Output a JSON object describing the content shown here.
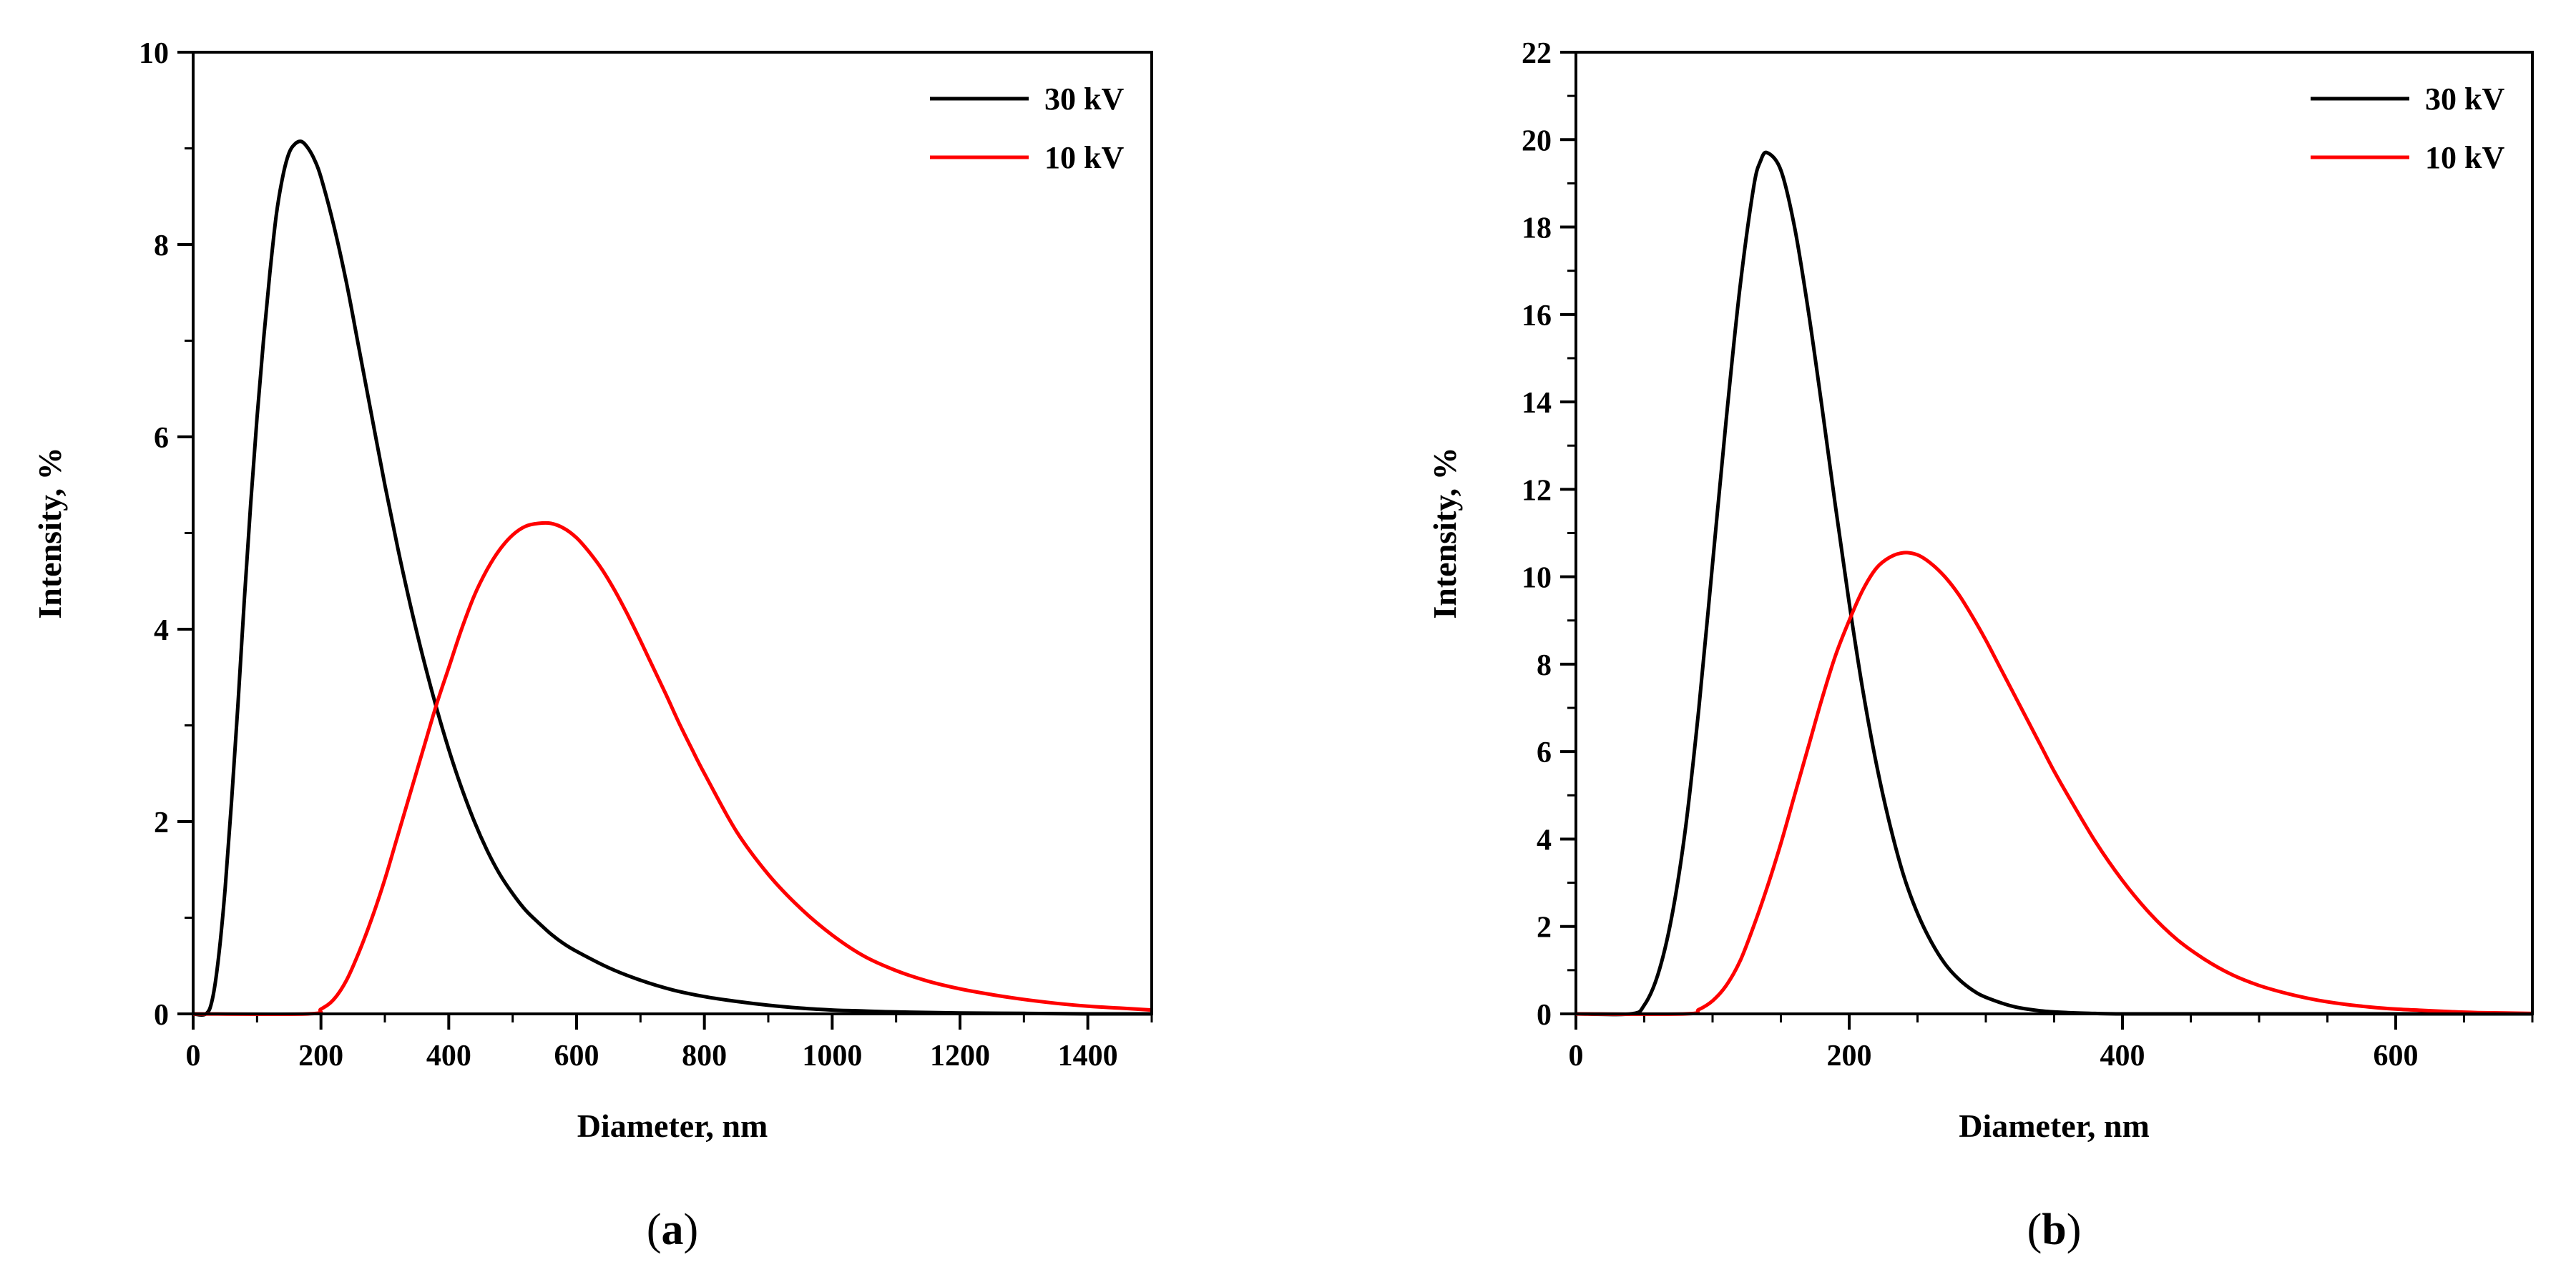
{
  "chart_data": [
    {
      "type": "line",
      "panel": "a",
      "caption_open": "(",
      "caption_letter": "a",
      "caption_close": ")",
      "title": "",
      "xlabel": "Diameter, nm",
      "ylabel": "Intensity, %",
      "xlim": [
        0,
        1500
      ],
      "ylim": [
        0,
        10
      ],
      "xticks": [
        0,
        200,
        400,
        600,
        800,
        1000,
        1200,
        1400
      ],
      "yticks": [
        0,
        2,
        4,
        6,
        8,
        10
      ],
      "x_minor_step": 100,
      "y_minor_step": 1,
      "legend_position": "top-right",
      "series": [
        {
          "name": "30 kV",
          "color": "#000000",
          "x": [
            0,
            20,
            30,
            40,
            50,
            60,
            70,
            80,
            90,
            100,
            110,
            120,
            130,
            140,
            150,
            160,
            170,
            180,
            190,
            200,
            220,
            240,
            260,
            280,
            300,
            320,
            340,
            360,
            380,
            400,
            420,
            440,
            460,
            480,
            500,
            520,
            540,
            560,
            580,
            600,
            650,
            700,
            750,
            800,
            850,
            900,
            950,
            1000,
            1050,
            1100,
            1200,
            1300,
            1400,
            1500
          ],
          "y": [
            0,
            0,
            0.15,
            0.6,
            1.3,
            2.2,
            3.2,
            4.3,
            5.3,
            6.2,
            7.0,
            7.7,
            8.3,
            8.7,
            8.95,
            9.05,
            9.07,
            9.0,
            8.88,
            8.7,
            8.2,
            7.6,
            6.9,
            6.2,
            5.5,
            4.85,
            4.25,
            3.7,
            3.2,
            2.75,
            2.35,
            2.0,
            1.7,
            1.45,
            1.25,
            1.08,
            0.95,
            0.83,
            0.73,
            0.65,
            0.48,
            0.35,
            0.25,
            0.18,
            0.13,
            0.09,
            0.06,
            0.04,
            0.03,
            0.02,
            0.01,
            0.005,
            0.0,
            0.0
          ]
        },
        {
          "name": "10 kV",
          "color": "#ff0000",
          "x": [
            0,
            180,
            200,
            220,
            240,
            260,
            280,
            300,
            320,
            340,
            360,
            380,
            400,
            420,
            440,
            460,
            480,
            500,
            520,
            540,
            560,
            580,
            600,
            620,
            640,
            660,
            680,
            700,
            720,
            740,
            760,
            780,
            800,
            850,
            900,
            950,
            1000,
            1050,
            1100,
            1150,
            1200,
            1250,
            1300,
            1350,
            1400,
            1450,
            1500
          ],
          "y": [
            0,
            0,
            0.05,
            0.15,
            0.35,
            0.65,
            1.0,
            1.4,
            1.85,
            2.3,
            2.75,
            3.2,
            3.6,
            4.0,
            4.35,
            4.62,
            4.83,
            4.98,
            5.07,
            5.1,
            5.1,
            5.05,
            4.95,
            4.8,
            4.62,
            4.4,
            4.15,
            3.88,
            3.6,
            3.32,
            3.03,
            2.76,
            2.5,
            1.9,
            1.45,
            1.1,
            0.82,
            0.6,
            0.45,
            0.34,
            0.26,
            0.2,
            0.15,
            0.11,
            0.08,
            0.06,
            0.04
          ]
        }
      ]
    },
    {
      "type": "line",
      "panel": "b",
      "caption_open": "(",
      "caption_letter": "b",
      "caption_close": ")",
      "title": "",
      "xlabel": "Diameter, nm",
      "ylabel": "Intensity, %",
      "xlim": [
        0,
        700
      ],
      "ylim": [
        0,
        22
      ],
      "xticks": [
        0,
        200,
        400,
        600
      ],
      "yticks": [
        0,
        2,
        4,
        6,
        8,
        10,
        12,
        14,
        16,
        18,
        20,
        22
      ],
      "x_minor_step": 50,
      "y_minor_step": 1,
      "legend_position": "top-right",
      "series": [
        {
          "name": "30 kV",
          "color": "#000000",
          "x": [
            0,
            40,
            50,
            60,
            70,
            80,
            90,
            100,
            110,
            120,
            130,
            135,
            140,
            150,
            160,
            170,
            180,
            190,
            200,
            210,
            220,
            230,
            240,
            250,
            260,
            270,
            280,
            290,
            300,
            320,
            340,
            360,
            380,
            400,
            450,
            500,
            600,
            700
          ],
          "y": [
            0,
            0,
            0.2,
            0.9,
            2.2,
            4.2,
            7.0,
            10.3,
            13.6,
            16.6,
            18.9,
            19.5,
            19.7,
            19.3,
            18.0,
            16.1,
            13.9,
            11.6,
            9.4,
            7.4,
            5.7,
            4.3,
            3.15,
            2.3,
            1.65,
            1.15,
            0.8,
            0.55,
            0.38,
            0.17,
            0.07,
            0.03,
            0.01,
            0.0,
            0.0,
            0.0,
            0.0,
            0.0
          ]
        },
        {
          "name": "10 kV",
          "color": "#ff0000",
          "x": [
            0,
            80,
            90,
            100,
            110,
            120,
            130,
            140,
            150,
            160,
            170,
            180,
            190,
            200,
            210,
            220,
            230,
            240,
            250,
            260,
            270,
            280,
            290,
            300,
            310,
            320,
            330,
            340,
            350,
            360,
            380,
            400,
            420,
            440,
            460,
            480,
            500,
            520,
            540,
            560,
            580,
            600,
            620,
            640,
            660,
            680,
            700
          ],
          "y": [
            0,
            0,
            0.1,
            0.3,
            0.65,
            1.2,
            2.0,
            2.9,
            3.9,
            5.0,
            6.1,
            7.2,
            8.2,
            9.0,
            9.7,
            10.2,
            10.45,
            10.55,
            10.5,
            10.3,
            10.0,
            9.6,
            9.1,
            8.55,
            7.95,
            7.35,
            6.75,
            6.15,
            5.55,
            5.0,
            3.95,
            3.05,
            2.3,
            1.7,
            1.25,
            0.9,
            0.65,
            0.47,
            0.33,
            0.23,
            0.16,
            0.11,
            0.08,
            0.05,
            0.03,
            0.02,
            0.01
          ]
        }
      ]
    }
  ]
}
